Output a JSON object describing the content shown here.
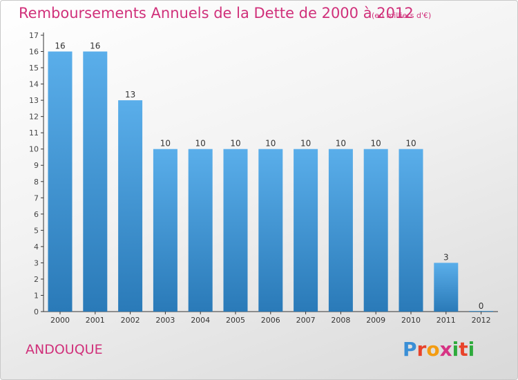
{
  "header": {
    "title": "Remboursements Annuels de la Dette de 2000 à 2012",
    "subtitle": "(en milliers d'€)"
  },
  "footer": {
    "commune": "ANDOUQUE",
    "brand": "Proxiti",
    "brand_colors": [
      "#3a8fd6",
      "#e8432b",
      "#f39c12",
      "#d63384",
      "#2eaa3c",
      "#e8432b",
      "#2eaa3c"
    ]
  },
  "colors": {
    "title": "#d0307a",
    "bar_light": "#5aaeea",
    "bar_dark": "#2a7ab8",
    "axis": "#333333"
  },
  "chart_data": {
    "type": "bar",
    "title": "Remboursements Annuels de la Dette de 2000 à 2012",
    "subtitle": "(en milliers d'€)",
    "categories": [
      "2000",
      "2001",
      "2002",
      "2003",
      "2004",
      "2005",
      "2006",
      "2007",
      "2008",
      "2009",
      "2010",
      "2011",
      "2012"
    ],
    "values": [
      16,
      16,
      13,
      10,
      10,
      10,
      10,
      10,
      10,
      10,
      10,
      3,
      0
    ],
    "value_labels": [
      "16",
      "16",
      "13",
      "10",
      "10",
      "10",
      "10",
      "10",
      "10",
      "10",
      "10",
      "3",
      "0"
    ],
    "yticks": [
      "0",
      "1",
      "2",
      "3",
      "4",
      "5",
      "6",
      "7",
      "8",
      "9",
      "10",
      "11",
      "12",
      "13",
      "14",
      "15",
      "16",
      "17"
    ],
    "ylim": [
      0,
      17
    ],
    "xlabel": "",
    "ylabel": "",
    "grid": false,
    "legend": "none"
  }
}
